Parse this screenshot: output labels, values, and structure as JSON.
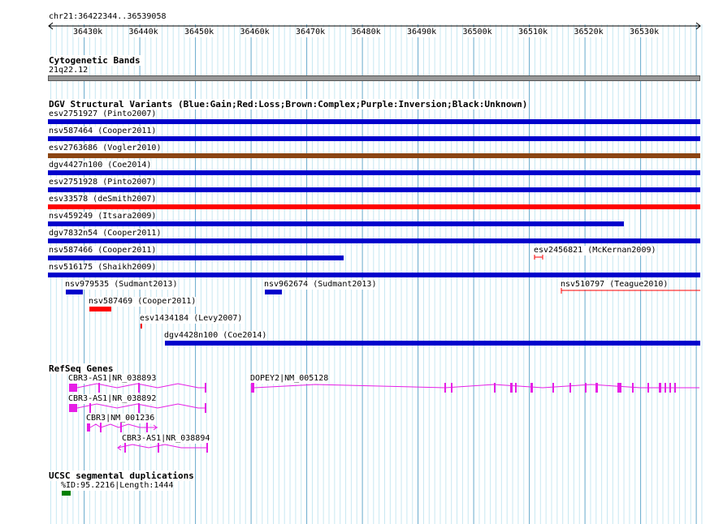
{
  "ruler": {
    "location": "chr21:36422344..36539058",
    "ticks": [
      "36430k",
      "36440k",
      "36450k",
      "36460k",
      "36470k",
      "36480k",
      "36490k",
      "36500k",
      "36510k",
      "36520k",
      "36530k"
    ]
  },
  "cytoband": {
    "title": "Cytogenetic Bands",
    "band": "21q22.12"
  },
  "dgv": {
    "title": "DGV Structural Variants (Blue:Gain;Red:Loss;Brown:Complex;Purple:Inversion;Black:Unknown)",
    "colors": {
      "gain": "#0000cc",
      "loss": "#ff0000",
      "complex": "#8b4513"
    },
    "features": [
      {
        "label": "esv2751927 (Pinto2007)"
      },
      {
        "label": "nsv587464 (Cooper2011)"
      },
      {
        "label": "esv2763686 (Vogler2010)"
      },
      {
        "label": "dgv4427n100 (Coe2014)"
      },
      {
        "label": "esv2751928 (Pinto2007)"
      },
      {
        "label": "esv33578 (deSmith2007)"
      },
      {
        "label": "nsv459249 (Itsara2009)"
      },
      {
        "label": "dgv7832n54 (Cooper2011)"
      },
      {
        "label": "nsv587466 (Cooper2011)"
      },
      {
        "label": "esv2456821 (McKernan2009)"
      },
      {
        "label": "nsv516175 (Shaikh2009)"
      },
      {
        "label": "nsv979535 (Sudmant2013)"
      },
      {
        "label": "nsv962674 (Sudmant2013)"
      },
      {
        "label": "nsv510797 (Teague2010)"
      },
      {
        "label": "nsv587469 (Cooper2011)"
      },
      {
        "label": "esv1434184 (Levy2007)"
      },
      {
        "label": "dgv4428n100 (Coe2014)"
      }
    ]
  },
  "refseq": {
    "title": "RefSeq Genes",
    "color": "#e61ee6",
    "genes": [
      {
        "label": "CBR3-AS1|NR_038893"
      },
      {
        "label": "DOPEY2|NM_005128"
      },
      {
        "label": "CBR3-AS1|NR_038892"
      },
      {
        "label": "CBR3|NM_001236"
      },
      {
        "label": "CBR3-AS1|NR_038894"
      }
    ]
  },
  "segdup": {
    "title": "UCSC segmental duplications",
    "color": "#008000",
    "features": [
      {
        "label": "%ID:95.2216|Length:1444"
      }
    ]
  }
}
